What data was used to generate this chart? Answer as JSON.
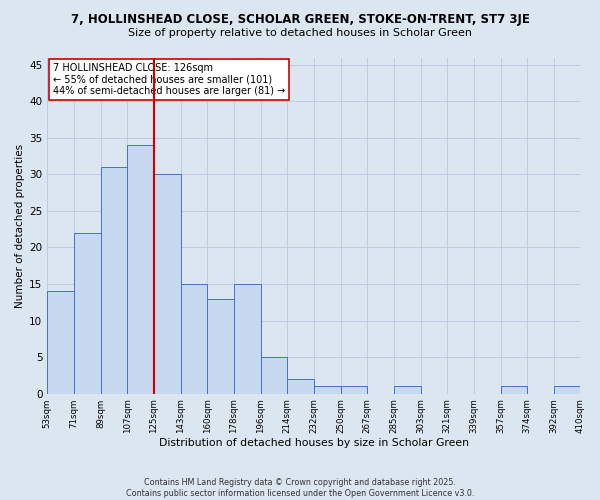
{
  "title": "7, HOLLINSHEAD CLOSE, SCHOLAR GREEN, STOKE-ON-TRENT, ST7 3JE",
  "subtitle": "Size of property relative to detached houses in Scholar Green",
  "xlabel": "Distribution of detached houses by size in Scholar Green",
  "ylabel": "Number of detached properties",
  "bar_values": [
    14,
    22,
    31,
    34,
    30,
    15,
    13,
    15,
    5,
    2,
    1,
    1,
    0,
    1,
    0,
    0,
    0,
    1,
    0,
    1
  ],
  "bin_labels": [
    "53sqm",
    "71sqm",
    "89sqm",
    "107sqm",
    "125sqm",
    "143sqm",
    "160sqm",
    "178sqm",
    "196sqm",
    "214sqm",
    "232sqm",
    "250sqm",
    "267sqm",
    "285sqm",
    "303sqm",
    "321sqm",
    "339sqm",
    "357sqm",
    "374sqm",
    "392sqm",
    "410sqm"
  ],
  "bar_color": "#c6d9f0",
  "bar_edge_color": "#4472c4",
  "grid_color": "#b8c8e0",
  "bg_color": "#dce6f1",
  "vline_x": 4,
  "vline_color": "#cc0000",
  "annotation_text": "7 HOLLINSHEAD CLOSE: 126sqm\n← 55% of detached houses are smaller (101)\n44% of semi-detached houses are larger (81) →",
  "annotation_box_color": "#ffffff",
  "annotation_box_edge": "#cc0000",
  "ylim": [
    0,
    46
  ],
  "yticks": [
    0,
    5,
    10,
    15,
    20,
    25,
    30,
    35,
    40,
    45
  ],
  "footer_line1": "Contains HM Land Registry data © Crown copyright and database right 2025.",
  "footer_line2": "Contains public sector information licensed under the Open Government Licence v3.0."
}
